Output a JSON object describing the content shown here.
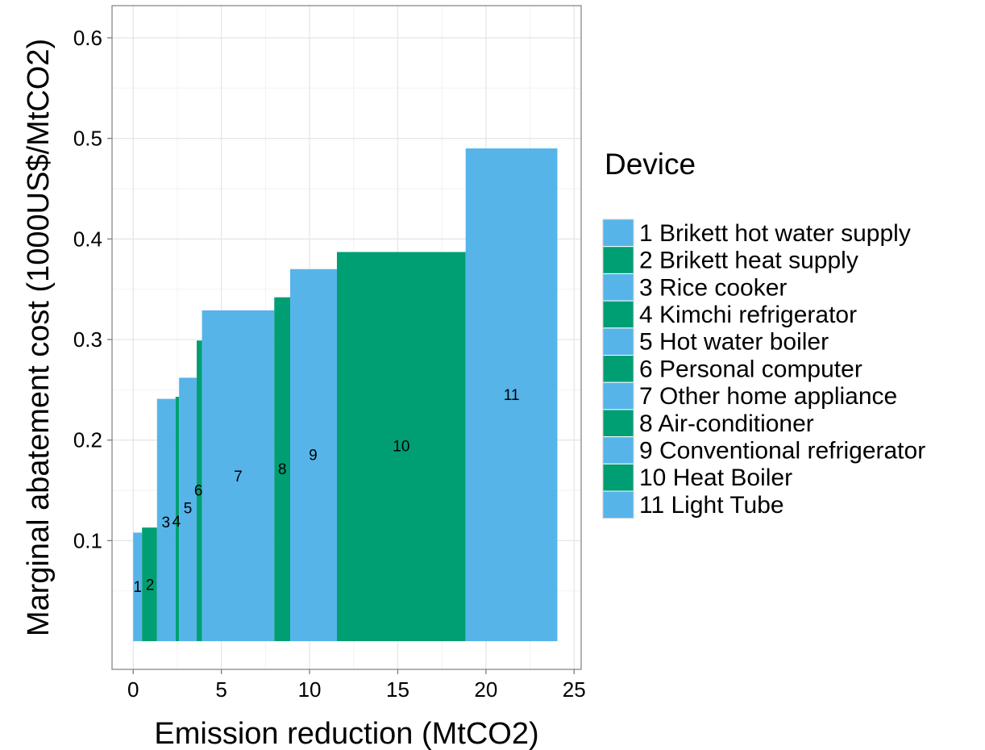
{
  "chart_data": {
    "type": "bar",
    "xlabel": "Emission reduction (MtCO2)",
    "ylabel": "Marginal abatement cost (1000US$/MtCO2)",
    "xlim": [
      -1.2,
      25.4
    ],
    "ylim": [
      -0.028,
      0.632
    ],
    "x_ticks": [
      0,
      5,
      10,
      15,
      20,
      25
    ],
    "y_ticks": [
      0.1,
      0.2,
      0.3,
      0.4,
      0.5,
      0.6
    ],
    "grid": true,
    "legend_title": "Device",
    "legend_position": "right",
    "colors": {
      "blue": "#56B4E9",
      "green": "#009E73"
    },
    "series": [
      {
        "id": "1",
        "name": "1 Brikett hot water supply",
        "x_start": 0.0,
        "x_end": 0.5,
        "value": 0.108,
        "color": "#56B4E9"
      },
      {
        "id": "2",
        "name": "2 Brikett heat supply",
        "x_start": 0.5,
        "x_end": 1.35,
        "value": 0.113,
        "color": "#009E73"
      },
      {
        "id": "3",
        "name": "3 Rice cooker",
        "x_start": 1.35,
        "x_end": 2.4,
        "value": 0.241,
        "color": "#56B4E9"
      },
      {
        "id": "4",
        "name": "4 Kimchi refrigerator",
        "x_start": 2.4,
        "x_end": 2.6,
        "value": 0.243,
        "color": "#009E73"
      },
      {
        "id": "5",
        "name": "5 Hot water boiler",
        "x_start": 2.6,
        "x_end": 3.6,
        "value": 0.262,
        "color": "#56B4E9"
      },
      {
        "id": "6",
        "name": "6 Personal computer",
        "x_start": 3.6,
        "x_end": 3.9,
        "value": 0.299,
        "color": "#009E73"
      },
      {
        "id": "7",
        "name": "7 Other home appliance",
        "x_start": 3.9,
        "x_end": 8.0,
        "value": 0.329,
        "color": "#56B4E9"
      },
      {
        "id": "8",
        "name": "8 Air-conditioner",
        "x_start": 8.0,
        "x_end": 8.9,
        "value": 0.342,
        "color": "#009E73"
      },
      {
        "id": "9",
        "name": "9 Conventional refrigerator",
        "x_start": 8.9,
        "x_end": 11.55,
        "value": 0.37,
        "color": "#56B4E9"
      },
      {
        "id": "10",
        "name": "10 Heat Boiler",
        "x_start": 11.55,
        "x_end": 18.85,
        "value": 0.387,
        "color": "#009E73"
      },
      {
        "id": "11",
        "name": "11 Light Tube",
        "x_start": 18.85,
        "x_end": 24.05,
        "value": 0.49,
        "color": "#56B4E9"
      }
    ],
    "bar_labels": [
      {
        "text": "1",
        "x": 0.25,
        "y": 0.053
      },
      {
        "text": "2",
        "x": 0.95,
        "y": 0.055
      },
      {
        "text": "3",
        "x": 1.85,
        "y": 0.117
      },
      {
        "text": "4",
        "x": 2.45,
        "y": 0.118
      },
      {
        "text": "5",
        "x": 3.1,
        "y": 0.131
      },
      {
        "text": "6",
        "x": 3.7,
        "y": 0.149
      },
      {
        "text": "7",
        "x": 5.95,
        "y": 0.163
      },
      {
        "text": "8",
        "x": 8.45,
        "y": 0.17
      },
      {
        "text": "9",
        "x": 10.2,
        "y": 0.184
      },
      {
        "text": "10",
        "x": 15.2,
        "y": 0.193
      },
      {
        "text": "11",
        "x": 21.45,
        "y": 0.244
      }
    ]
  }
}
